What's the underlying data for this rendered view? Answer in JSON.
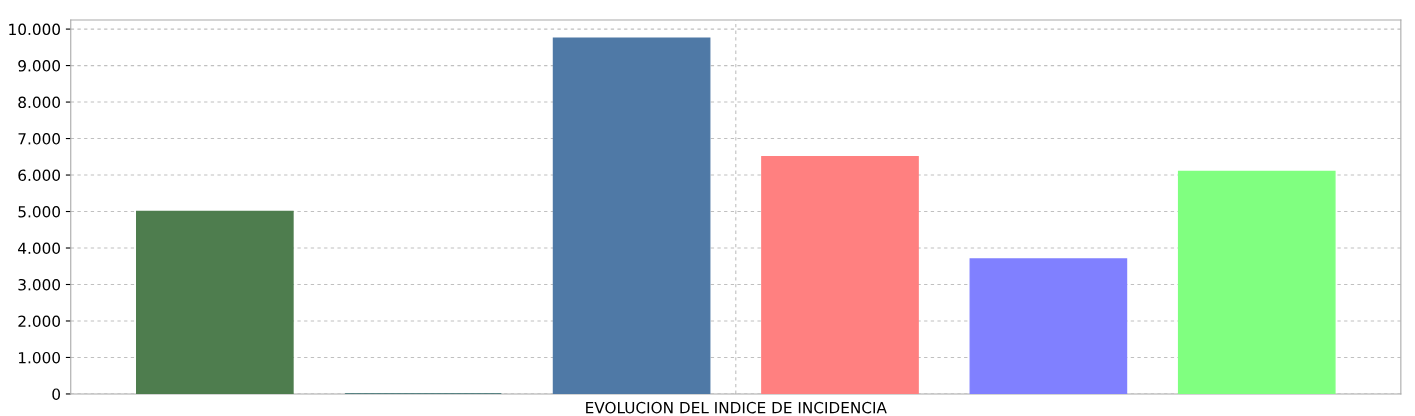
{
  "chart_data": {
    "type": "bar",
    "xlabel": "EVOLUCION DEL INDICE DE INCIDENCIA",
    "categories": [
      null
    ],
    "series": [
      {
        "color": "#4e7d4e",
        "values": [
          5000
        ]
      },
      {
        "color": "#336b6b",
        "values": [
          0
        ]
      },
      {
        "color": "#4f79a6",
        "values": [
          9750
        ]
      },
      {
        "color": "#ff8080",
        "values": [
          6500
        ]
      },
      {
        "color": "#8080ff",
        "values": [
          3700
        ]
      },
      {
        "color": "#80ff80",
        "values": [
          6100
        ]
      }
    ],
    "ylim": [
      0,
      10250
    ],
    "yticks": [
      0,
      {
        "value": 1000,
        "label": "1.000"
      },
      {
        "value": 2000,
        "label": "2.000"
      },
      {
        "value": 3000,
        "label": "3.000"
      },
      {
        "value": 4000,
        "label": "4.000"
      },
      {
        "value": 5000,
        "label": "5.000"
      },
      {
        "value": 6000,
        "label": "6.000"
      },
      {
        "value": 7000,
        "label": "7.000"
      },
      {
        "value": 8000,
        "label": "8.000"
      },
      {
        "value": 9000,
        "label": "9.000"
      },
      {
        "value": 10000,
        "label": "10.000"
      }
    ],
    "grid": true
  }
}
